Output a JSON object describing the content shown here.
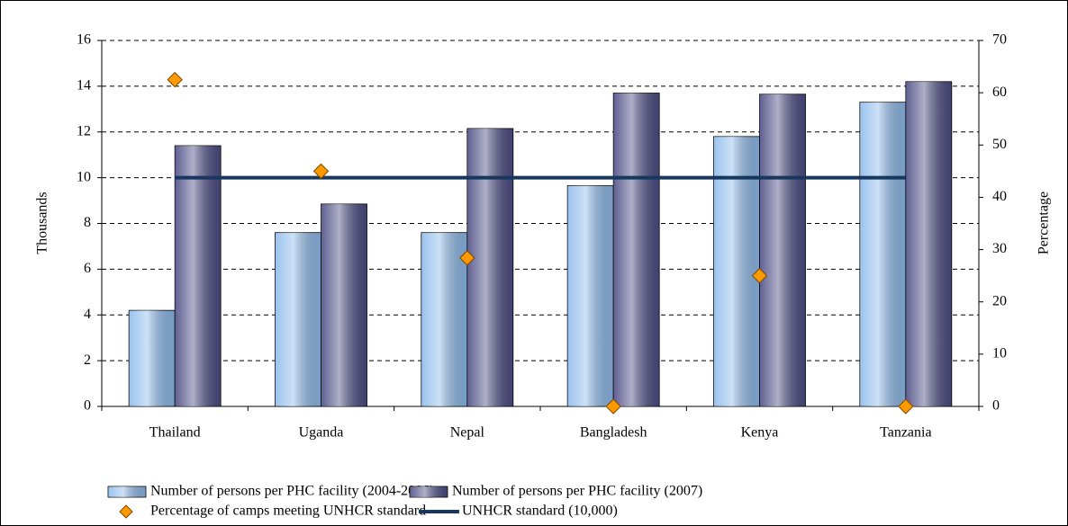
{
  "chart_data": {
    "type": "bar",
    "categories": [
      "Thailand",
      "Uganda",
      "Nepal",
      "Bangladesh",
      "Kenya",
      "Tanzania"
    ],
    "y_label": "Thousands",
    "y2_label": "Percentage",
    "ylim": [
      0,
      16
    ],
    "yticks": [
      0,
      2,
      4,
      6,
      8,
      10,
      12,
      14,
      16
    ],
    "y2lim": [
      0,
      70
    ],
    "y2ticks": [
      0,
      10,
      20,
      30,
      40,
      50,
      60,
      70
    ],
    "grid": true,
    "legend": "bottom",
    "series": [
      {
        "name": "Number of persons per PHC facility (2004-2006)",
        "type": "bar",
        "color": "#8fbcec",
        "values": [
          4.2,
          7.6,
          7.6,
          9.65,
          11.8,
          13.3
        ]
      },
      {
        "name": "Number of persons per PHC facility (2007)",
        "type": "bar",
        "color": "#4e4e86",
        "values": [
          11.4,
          8.85,
          12.15,
          13.7,
          13.65,
          14.2
        ]
      },
      {
        "name": "Percentage of camps meeting UNHCR standard",
        "type": "scatter",
        "axis": "y2",
        "color": "#ff9900",
        "values": [
          62.5,
          45,
          28.4,
          0,
          25,
          0
        ]
      },
      {
        "name": "UNHCR standard (10,000)",
        "type": "line",
        "color": "#17375e",
        "values": [
          10,
          10,
          10,
          10,
          10,
          10
        ]
      }
    ]
  }
}
